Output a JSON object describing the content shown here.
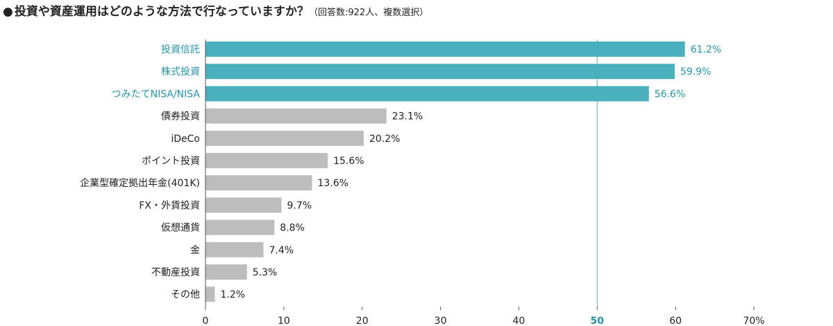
{
  "title": {
    "bullet": "●",
    "main": "投資や資産運用はどのような方法で行なっていますか？",
    "note": "（回答数:922人、複数選択）"
  },
  "colors": {
    "highlight": "#4bb0be",
    "highlight_text": "#2a93a6",
    "normal": "#bdbdbd",
    "text": "#222222",
    "axis": "#555555",
    "refline": "#6aaab8"
  },
  "chart_data": {
    "type": "bar",
    "orientation": "horizontal",
    "title": "投資や資産運用はどのような方法で行なっていますか？",
    "xlabel": "",
    "ylabel": "",
    "xlim": [
      0,
      70
    ],
    "unit": "%",
    "reference_line": 50,
    "categories": [
      "投資信託",
      "株式投資",
      "つみたてNISA/NISA",
      "債券投資",
      "iDeCo",
      "ポイント投資",
      "企業型確定拠出年金(401K)",
      "FX・外貨投資",
      "仮想通貨",
      "金",
      "不動産投資",
      "その他"
    ],
    "values": [
      61.2,
      59.9,
      56.6,
      23.1,
      20.2,
      15.6,
      13.6,
      9.7,
      8.8,
      7.4,
      5.3,
      1.2
    ],
    "value_labels": [
      "61.2%",
      "59.9%",
      "56.6%",
      "23.1%",
      "20.2%",
      "15.6%",
      "13.6%",
      "9.7%",
      "8.8%",
      "7.4%",
      "5.3%",
      "1.2%"
    ],
    "highlighted": [
      true,
      true,
      true,
      false,
      false,
      false,
      false,
      false,
      false,
      false,
      false,
      false
    ],
    "ticks": [
      {
        "value": 0,
        "label": "0"
      },
      {
        "value": 10,
        "label": "10"
      },
      {
        "value": 20,
        "label": "20"
      },
      {
        "value": 30,
        "label": "30"
      },
      {
        "value": 40,
        "label": "40"
      },
      {
        "value": 50,
        "label": "50"
      },
      {
        "value": 60,
        "label": "60"
      },
      {
        "value": 70,
        "label": "70%"
      }
    ]
  }
}
